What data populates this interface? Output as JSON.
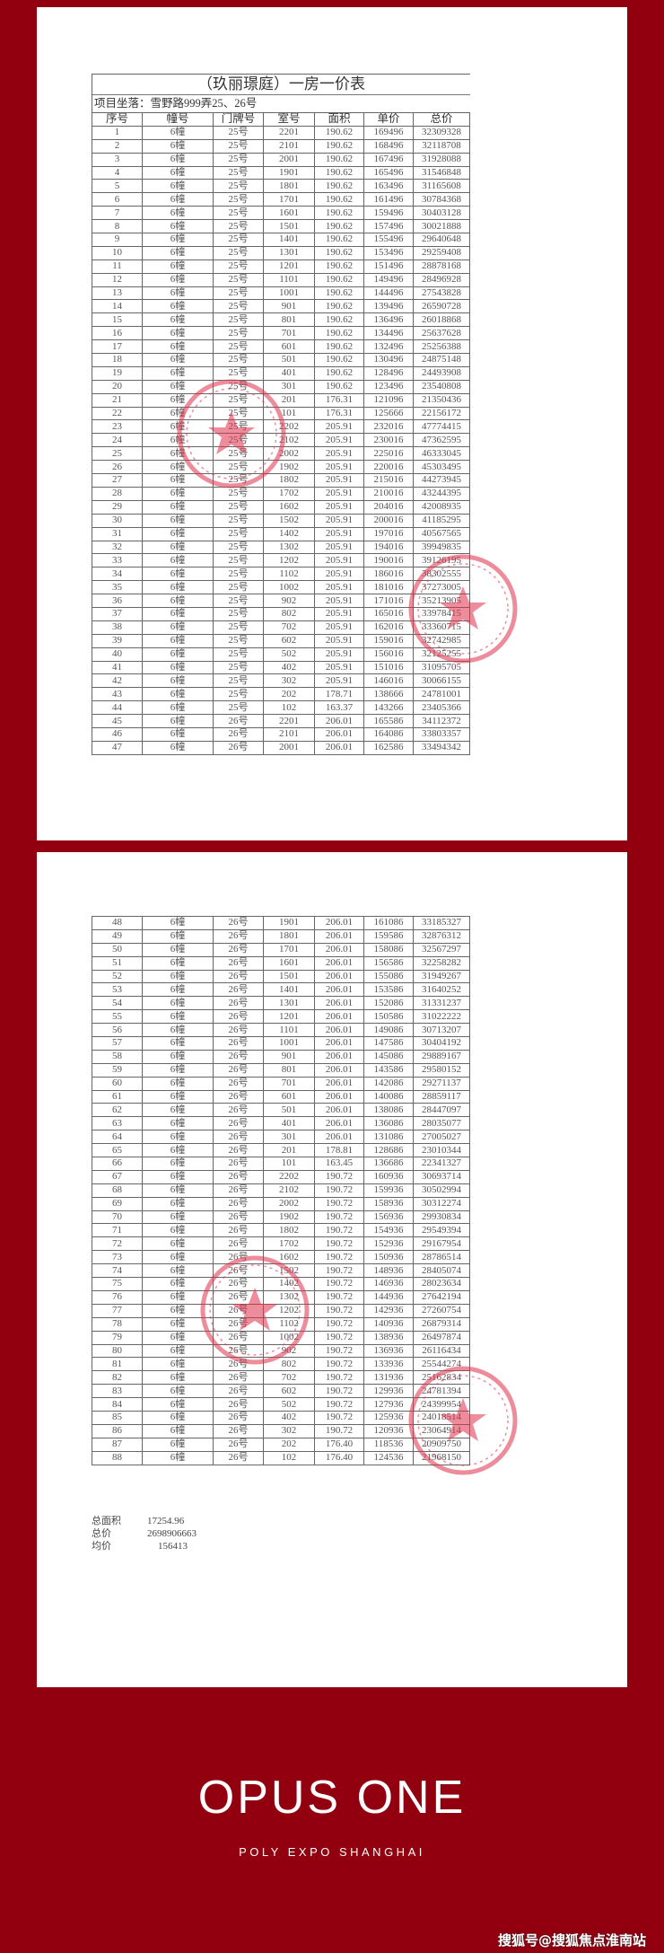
{
  "document": {
    "title": "（玖丽璟庭）一房一价表",
    "location": "项目坐落：雪野路999弄25、26号",
    "columns": [
      "序号",
      "幢号",
      "门牌号",
      "室号",
      "面积",
      "单价",
      "总价"
    ],
    "rows_page1": [
      [
        "1",
        "6幢",
        "25号",
        "2201",
        "190.62",
        "169496",
        "32309328"
      ],
      [
        "2",
        "6幢",
        "25号",
        "2101",
        "190.62",
        "168496",
        "32118708"
      ],
      [
        "3",
        "6幢",
        "25号",
        "2001",
        "190.62",
        "167496",
        "31928088"
      ],
      [
        "4",
        "6幢",
        "25号",
        "1901",
        "190.62",
        "165496",
        "31546848"
      ],
      [
        "5",
        "6幢",
        "25号",
        "1801",
        "190.62",
        "163496",
        "31165608"
      ],
      [
        "6",
        "6幢",
        "25号",
        "1701",
        "190.62",
        "161496",
        "30784368"
      ],
      [
        "7",
        "6幢",
        "25号",
        "1601",
        "190.62",
        "159496",
        "30403128"
      ],
      [
        "8",
        "6幢",
        "25号",
        "1501",
        "190.62",
        "157496",
        "30021888"
      ],
      [
        "9",
        "6幢",
        "25号",
        "1401",
        "190.62",
        "155496",
        "29640648"
      ],
      [
        "10",
        "6幢",
        "25号",
        "1301",
        "190.62",
        "153496",
        "29259408"
      ],
      [
        "11",
        "6幢",
        "25号",
        "1201",
        "190.62",
        "151496",
        "28878168"
      ],
      [
        "12",
        "6幢",
        "25号",
        "1101",
        "190.62",
        "149496",
        "28496928"
      ],
      [
        "13",
        "6幢",
        "25号",
        "1001",
        "190.62",
        "144496",
        "27543828"
      ],
      [
        "14",
        "6幢",
        "25号",
        "901",
        "190.62",
        "139496",
        "26590728"
      ],
      [
        "15",
        "6幢",
        "25号",
        "801",
        "190.62",
        "136496",
        "26018868"
      ],
      [
        "16",
        "6幢",
        "25号",
        "701",
        "190.62",
        "134496",
        "25637628"
      ],
      [
        "17",
        "6幢",
        "25号",
        "601",
        "190.62",
        "132496",
        "25256388"
      ],
      [
        "18",
        "6幢",
        "25号",
        "501",
        "190.62",
        "130496",
        "24875148"
      ],
      [
        "19",
        "6幢",
        "25号",
        "401",
        "190.62",
        "128496",
        "24493908"
      ],
      [
        "20",
        "6幢",
        "25号",
        "301",
        "190.62",
        "123496",
        "23540808"
      ],
      [
        "21",
        "6幢",
        "25号",
        "201",
        "176.31",
        "121096",
        "21350436"
      ],
      [
        "22",
        "6幢",
        "25号",
        "101",
        "176.31",
        "125666",
        "22156172"
      ],
      [
        "23",
        "6幢",
        "25号",
        "2202",
        "205.91",
        "232016",
        "47774415"
      ],
      [
        "24",
        "6幢",
        "25号",
        "2102",
        "205.91",
        "230016",
        "47362595"
      ],
      [
        "25",
        "6幢",
        "25号",
        "2002",
        "205.91",
        "225016",
        "46333045"
      ],
      [
        "26",
        "6幢",
        "25号",
        "1902",
        "205.91",
        "220016",
        "45303495"
      ],
      [
        "27",
        "6幢",
        "25号",
        "1802",
        "205.91",
        "215016",
        "44273945"
      ],
      [
        "28",
        "6幢",
        "25号",
        "1702",
        "205.91",
        "210016",
        "43244395"
      ],
      [
        "29",
        "6幢",
        "25号",
        "1602",
        "205.91",
        "204016",
        "42008935"
      ],
      [
        "30",
        "6幢",
        "25号",
        "1502",
        "205.91",
        "200016",
        "41185295"
      ],
      [
        "31",
        "6幢",
        "25号",
        "1402",
        "205.91",
        "197016",
        "40567565"
      ],
      [
        "32",
        "6幢",
        "25号",
        "1302",
        "205.91",
        "194016",
        "39949835"
      ],
      [
        "33",
        "6幢",
        "25号",
        "1202",
        "205.91",
        "190016",
        "39126195"
      ],
      [
        "34",
        "6幢",
        "25号",
        "1102",
        "205.91",
        "186016",
        "38302555"
      ],
      [
        "35",
        "6幢",
        "25号",
        "1002",
        "205.91",
        "181016",
        "37273005"
      ],
      [
        "36",
        "6幢",
        "25号",
        "902",
        "205.91",
        "171016",
        "35213905"
      ],
      [
        "37",
        "6幢",
        "25号",
        "802",
        "205.91",
        "165016",
        "33978415"
      ],
      [
        "38",
        "6幢",
        "25号",
        "702",
        "205.91",
        "162016",
        "33360715"
      ],
      [
        "39",
        "6幢",
        "25号",
        "602",
        "205.91",
        "159016",
        "32742985"
      ],
      [
        "40",
        "6幢",
        "25号",
        "502",
        "205.91",
        "156016",
        "32125255"
      ],
      [
        "41",
        "6幢",
        "25号",
        "402",
        "205.91",
        "151016",
        "31095705"
      ],
      [
        "42",
        "6幢",
        "25号",
        "302",
        "205.91",
        "146016",
        "30066155"
      ],
      [
        "43",
        "6幢",
        "25号",
        "202",
        "178.71",
        "138666",
        "24781001"
      ],
      [
        "44",
        "6幢",
        "25号",
        "102",
        "163.37",
        "143266",
        "23405366"
      ],
      [
        "45",
        "6幢",
        "26号",
        "2201",
        "206.01",
        "165586",
        "34112372"
      ],
      [
        "46",
        "6幢",
        "26号",
        "2101",
        "206.01",
        "164086",
        "33803357"
      ],
      [
        "47",
        "6幢",
        "26号",
        "2001",
        "206.01",
        "162586",
        "33494342"
      ]
    ],
    "rows_page2": [
      [
        "48",
        "6幢",
        "26号",
        "1901",
        "206.01",
        "161086",
        "33185327"
      ],
      [
        "49",
        "6幢",
        "26号",
        "1801",
        "206.01",
        "159586",
        "32876312"
      ],
      [
        "50",
        "6幢",
        "26号",
        "1701",
        "206.01",
        "158086",
        "32567297"
      ],
      [
        "51",
        "6幢",
        "26号",
        "1601",
        "206.01",
        "156586",
        "32258282"
      ],
      [
        "52",
        "6幢",
        "26号",
        "1501",
        "206.01",
        "155086",
        "31949267"
      ],
      [
        "53",
        "6幢",
        "26号",
        "1401",
        "206.01",
        "153586",
        "31640252"
      ],
      [
        "54",
        "6幢",
        "26号",
        "1301",
        "206.01",
        "152086",
        "31331237"
      ],
      [
        "55",
        "6幢",
        "26号",
        "1201",
        "206.01",
        "150586",
        "31022222"
      ],
      [
        "56",
        "6幢",
        "26号",
        "1101",
        "206.01",
        "149086",
        "30713207"
      ],
      [
        "57",
        "6幢",
        "26号",
        "1001",
        "206.01",
        "147586",
        "30404192"
      ],
      [
        "58",
        "6幢",
        "26号",
        "901",
        "206.01",
        "145086",
        "29889167"
      ],
      [
        "59",
        "6幢",
        "26号",
        "801",
        "206.01",
        "143586",
        "29580152"
      ],
      [
        "60",
        "6幢",
        "26号",
        "701",
        "206.01",
        "142086",
        "29271137"
      ],
      [
        "61",
        "6幢",
        "26号",
        "601",
        "206.01",
        "140086",
        "28859117"
      ],
      [
        "62",
        "6幢",
        "26号",
        "501",
        "206.01",
        "138086",
        "28447097"
      ],
      [
        "63",
        "6幢",
        "26号",
        "401",
        "206.01",
        "136086",
        "28035077"
      ],
      [
        "64",
        "6幢",
        "26号",
        "301",
        "206.01",
        "131086",
        "27005027"
      ],
      [
        "65",
        "6幢",
        "26号",
        "201",
        "178.81",
        "128686",
        "23010344"
      ],
      [
        "66",
        "6幢",
        "26号",
        "101",
        "163.45",
        "136686",
        "22341327"
      ],
      [
        "67",
        "6幢",
        "26号",
        "2202",
        "190.72",
        "160936",
        "30693714"
      ],
      [
        "68",
        "6幢",
        "26号",
        "2102",
        "190.72",
        "159936",
        "30502994"
      ],
      [
        "69",
        "6幢",
        "26号",
        "2002",
        "190.72",
        "158936",
        "30312274"
      ],
      [
        "70",
        "6幢",
        "26号",
        "1902",
        "190.72",
        "156936",
        "29930834"
      ],
      [
        "71",
        "6幢",
        "26号",
        "1802",
        "190.72",
        "154936",
        "29549394"
      ],
      [
        "72",
        "6幢",
        "26号",
        "1702",
        "190.72",
        "152936",
        "29167954"
      ],
      [
        "73",
        "6幢",
        "26号",
        "1602",
        "190.72",
        "150936",
        "28786514"
      ],
      [
        "74",
        "6幢",
        "26号",
        "1502",
        "190.72",
        "148936",
        "28405074"
      ],
      [
        "75",
        "6幢",
        "26号",
        "1402",
        "190.72",
        "146936",
        "28023634"
      ],
      [
        "76",
        "6幢",
        "26号",
        "1302",
        "190.72",
        "144936",
        "27642194"
      ],
      [
        "77",
        "6幢",
        "26号",
        "1202",
        "190.72",
        "142936",
        "27260754"
      ],
      [
        "78",
        "6幢",
        "26号",
        "1102",
        "190.72",
        "140936",
        "26879314"
      ],
      [
        "79",
        "6幢",
        "26号",
        "1002",
        "190.72",
        "138936",
        "26497874"
      ],
      [
        "80",
        "6幢",
        "26号",
        "902",
        "190.72",
        "136936",
        "26116434"
      ],
      [
        "81",
        "6幢",
        "26号",
        "802",
        "190.72",
        "133936",
        "25544274"
      ],
      [
        "82",
        "6幢",
        "26号",
        "702",
        "190.72",
        "131936",
        "25162834"
      ],
      [
        "83",
        "6幢",
        "26号",
        "602",
        "190.72",
        "129936",
        "24781394"
      ],
      [
        "84",
        "6幢",
        "26号",
        "502",
        "190.72",
        "127936",
        "24399954"
      ],
      [
        "85",
        "6幢",
        "26号",
        "402",
        "190.72",
        "125936",
        "24018514"
      ],
      [
        "86",
        "6幢",
        "26号",
        "302",
        "190.72",
        "120936",
        "23064914"
      ],
      [
        "87",
        "6幢",
        "26号",
        "202",
        "176.40",
        "118536",
        "20909750"
      ],
      [
        "88",
        "6幢",
        "26号",
        "102",
        "176.40",
        "124536",
        "21968150"
      ]
    ],
    "summary": {
      "total_area_label": "总面积",
      "total_area": "17254.96",
      "total_price_label": "总价",
      "total_price": "2698906663",
      "avg_price_label": "均价",
      "avg_price": "156413"
    }
  },
  "branding": {
    "title": "OPUS ONE",
    "subtitle": "POLY EXPO SHANGHAI",
    "watermark": "搜狐号@搜狐焦点淮南站"
  },
  "colors": {
    "background": "#92000f",
    "stamp": "#e0304a",
    "page": "#ffffff"
  }
}
